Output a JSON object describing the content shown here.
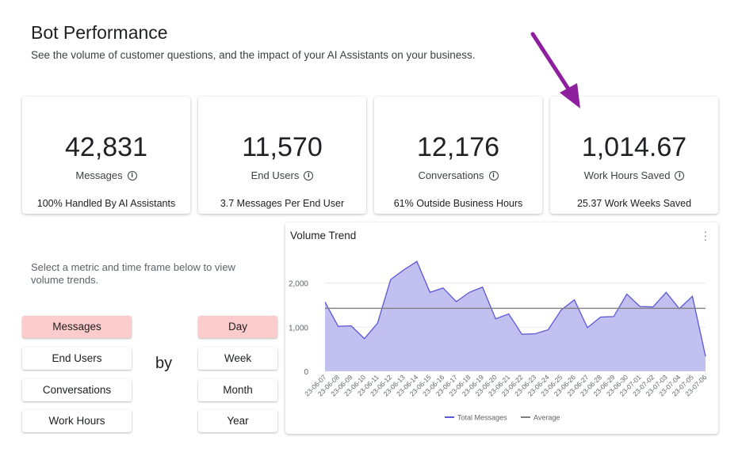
{
  "header": {
    "title": "Bot Performance",
    "subtitle": "See the volume of customer questions, and the impact of your AI Assistants on your business."
  },
  "cards": [
    {
      "value": "42,831",
      "label": "Messages",
      "foot": "100% Handled By AI Assistants"
    },
    {
      "value": "11,570",
      "label": "End Users",
      "foot": "3.7 Messages Per End User"
    },
    {
      "value": "12,176",
      "label": "Conversations",
      "foot": "61% Outside Business Hours"
    },
    {
      "value": "1,014.67",
      "label": "Work Hours Saved",
      "foot": "25.37 Work Weeks Saved"
    }
  ],
  "selector": {
    "prompt": "Select a metric and time frame below to view volume trends.",
    "metrics": [
      "Messages",
      "End Users",
      "Conversations",
      "Work Hours"
    ],
    "timeframes": [
      "Day",
      "Week",
      "Month",
      "Year"
    ],
    "by_label": "by",
    "active_metric": "Messages",
    "active_timeframe": "Day"
  },
  "icons": {
    "info": "info-icon",
    "menu": "more-vert-icon",
    "annotation_arrow": "arrow-icon"
  },
  "colors": {
    "active_button": "#fccbcb",
    "area_fill": "#c2c0f1",
    "line": "#5b57d6",
    "average_line": "#7f7f7f",
    "annotation_arrow": "#8e1f9e"
  },
  "chart_data": {
    "type": "area",
    "title": "Volume Trend",
    "x": [
      "23-06-07",
      "23-06-08",
      "23-06-09",
      "23-06-10",
      "23-06-11",
      "23-06-12",
      "23-06-13",
      "23-06-14",
      "23-06-15",
      "23-06-16",
      "23-06-17",
      "23-06-18",
      "23-06-19",
      "23-06-20",
      "23-06-21",
      "23-06-22",
      "23-06-23",
      "23-06-24",
      "23-06-25",
      "23-06-26",
      "23-06-27",
      "23-06-28",
      "23-06-29",
      "23-06-30",
      "23-07-01",
      "23-07-02",
      "23-07-03",
      "23-07-04",
      "23-07-05",
      "23-07-06"
    ],
    "series": [
      {
        "name": "Total Messages",
        "values": [
          1570,
          1020,
          1030,
          740,
          1090,
          2080,
          2300,
          2490,
          1790,
          1890,
          1580,
          1790,
          1910,
          1190,
          1300,
          840,
          850,
          940,
          1390,
          1620,
          990,
          1230,
          1240,
          1750,
          1470,
          1460,
          1790,
          1420,
          1700,
          340
        ]
      },
      {
        "name": "Average",
        "values": [
          1428,
          1428,
          1428,
          1428,
          1428,
          1428,
          1428,
          1428,
          1428,
          1428,
          1428,
          1428,
          1428,
          1428,
          1428,
          1428,
          1428,
          1428,
          1428,
          1428,
          1428,
          1428,
          1428,
          1428,
          1428,
          1428,
          1428,
          1428,
          1428,
          1428
        ]
      }
    ],
    "yticks": [
      0,
      1000,
      2000
    ],
    "ytick_labels": [
      "0",
      "1,000",
      "2,000"
    ],
    "ylim": [
      0,
      2800
    ],
    "legend": [
      "Total Messages",
      "Average"
    ],
    "legend_position": "bottom",
    "grid": true
  }
}
